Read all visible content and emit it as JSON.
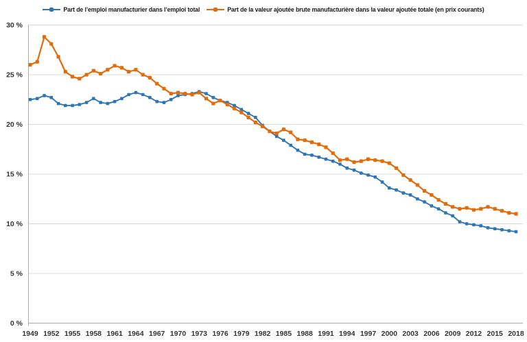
{
  "chart_data": {
    "type": "line",
    "title": "",
    "xlabel": "",
    "ylabel": "",
    "grid": "horizontal",
    "legend_position": "top",
    "ylim": [
      0,
      30
    ],
    "yticks": [
      0,
      5,
      10,
      15,
      20,
      25,
      30
    ],
    "ytick_suffix": " %",
    "xticks": [
      1949,
      1952,
      1955,
      1958,
      1961,
      1964,
      1967,
      1970,
      1973,
      1976,
      1979,
      1982,
      1985,
      1988,
      1991,
      1994,
      1997,
      2000,
      2003,
      2006,
      2009,
      2012,
      2015,
      2018
    ],
    "x": [
      1949,
      1950,
      1951,
      1952,
      1953,
      1954,
      1955,
      1956,
      1957,
      1958,
      1959,
      1960,
      1961,
      1962,
      1963,
      1964,
      1965,
      1966,
      1967,
      1968,
      1969,
      1970,
      1971,
      1972,
      1973,
      1974,
      1975,
      1976,
      1977,
      1978,
      1979,
      1980,
      1981,
      1982,
      1983,
      1984,
      1985,
      1986,
      1987,
      1988,
      1989,
      1990,
      1991,
      1992,
      1993,
      1994,
      1995,
      1996,
      1997,
      1998,
      1999,
      2000,
      2001,
      2002,
      2003,
      2004,
      2005,
      2006,
      2007,
      2008,
      2009,
      2010,
      2011,
      2012,
      2013,
      2014,
      2015,
      2016,
      2017,
      2018
    ],
    "series": [
      {
        "key": "emploi",
        "name": "Part de l’emploi manufacturier dans l’emploi total",
        "color": "#2E75B6",
        "marker": "square",
        "values": [
          22.5,
          22.6,
          22.9,
          22.7,
          22.1,
          21.9,
          21.9,
          22.0,
          22.2,
          22.6,
          22.2,
          22.1,
          22.3,
          22.6,
          23.0,
          23.2,
          23.0,
          22.7,
          22.3,
          22.2,
          22.5,
          22.9,
          23.0,
          23.1,
          23.3,
          23.1,
          22.7,
          22.4,
          22.2,
          21.9,
          21.5,
          21.1,
          20.7,
          19.9,
          19.3,
          18.8,
          18.4,
          17.9,
          17.4,
          17.0,
          16.9,
          16.7,
          16.5,
          16.3,
          16.0,
          15.6,
          15.4,
          15.1,
          14.9,
          14.7,
          14.2,
          13.6,
          13.4,
          13.1,
          12.9,
          12.5,
          12.2,
          11.8,
          11.5,
          11.1,
          10.8,
          10.2,
          10.0,
          9.9,
          9.8,
          9.6,
          9.5,
          9.4,
          9.3,
          9.2
        ]
      },
      {
        "key": "valeur-ajoutee",
        "name": "Part de la valeur ajoutée brute manufacturière dans la valeur ajoutée totale (en prix courants)",
        "color": "#E36C0A",
        "marker": "square",
        "values": [
          26.0,
          26.3,
          28.8,
          28.1,
          26.8,
          25.3,
          24.8,
          24.6,
          25.0,
          25.4,
          25.1,
          25.5,
          25.9,
          25.7,
          25.3,
          25.5,
          25.0,
          24.7,
          24.1,
          23.6,
          23.1,
          23.2,
          23.1,
          23.0,
          23.2,
          22.6,
          22.1,
          22.4,
          22.0,
          21.6,
          21.2,
          20.7,
          20.2,
          19.8,
          19.3,
          19.1,
          19.5,
          19.2,
          18.5,
          18.4,
          18.2,
          18.0,
          17.7,
          17.1,
          16.4,
          16.5,
          16.2,
          16.3,
          16.5,
          16.4,
          16.3,
          16.1,
          15.6,
          14.9,
          14.4,
          13.9,
          13.3,
          12.9,
          12.4,
          12.0,
          11.7,
          11.5,
          11.6,
          11.4,
          11.5,
          11.7,
          11.5,
          11.3,
          11.1,
          11.0
        ]
      }
    ],
    "axis_label_color": "#333333",
    "gridline_color": "#D9D9D9",
    "axis_line_color": "#ABABAB"
  }
}
